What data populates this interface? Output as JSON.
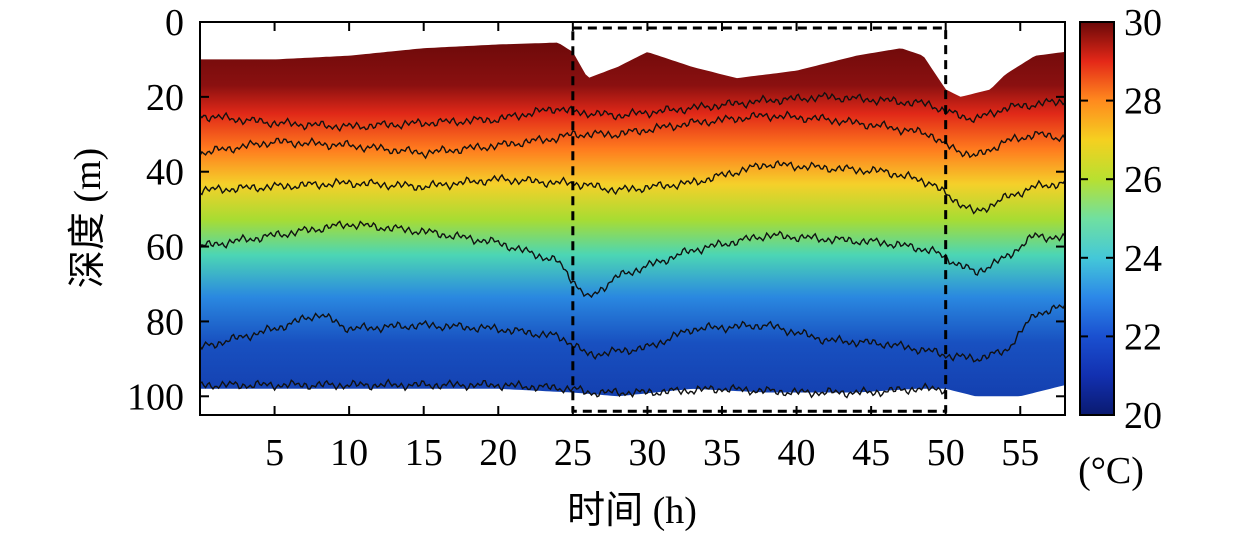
{
  "chart_data": {
    "type": "heatmap",
    "xlabel": "时间 (h)",
    "ylabel": "深度 (m)",
    "xlim": [
      0,
      58
    ],
    "ylim": [
      0,
      105
    ],
    "y_inverted": true,
    "x_ticks": [
      5,
      10,
      15,
      20,
      25,
      30,
      35,
      40,
      45,
      50,
      55
    ],
    "y_ticks": [
      0,
      20,
      40,
      60,
      80,
      100
    ],
    "colorbar": {
      "label": "(°C)",
      "range": [
        20,
        30
      ],
      "ticks": [
        20,
        22,
        24,
        26,
        28,
        30
      ]
    },
    "highlight_box": {
      "x_range": [
        25,
        50
      ],
      "y_range": [
        0,
        104
      ]
    },
    "surface_depth": {
      "t": [
        0,
        5,
        10,
        15,
        20,
        24,
        25,
        26,
        28,
        30,
        33,
        36,
        40,
        44,
        47,
        48.5,
        50,
        51,
        53,
        54,
        56,
        58
      ],
      "depth": [
        10,
        10,
        9,
        7,
        6,
        5.5,
        8,
        15,
        12,
        8,
        12,
        15,
        13,
        9,
        7,
        9,
        18,
        20,
        18,
        14,
        9,
        8
      ]
    },
    "bottom_depth": {
      "t": [
        0,
        10,
        20,
        25,
        28,
        33,
        38,
        44,
        48,
        50,
        52,
        55,
        58
      ],
      "depth": [
        98,
        98,
        98,
        99,
        100,
        98,
        99,
        99,
        98,
        98,
        100,
        100,
        97
      ]
    },
    "isotherms": [
      {
        "t": [
          0,
          5,
          10,
          15,
          20,
          24,
          25,
          28,
          33,
          38,
          42,
          46,
          49,
          50,
          52,
          54,
          56,
          58
        ],
        "depth": [
          25,
          27,
          28,
          27,
          26,
          23,
          24,
          25,
          23,
          21,
          20,
          21,
          22,
          24,
          26,
          23,
          22,
          21
        ]
      },
      {
        "t": [
          0,
          5,
          10,
          15,
          20,
          24,
          25,
          28,
          33,
          38,
          42,
          46,
          49,
          50,
          52,
          54,
          56,
          58
        ],
        "depth": [
          35,
          32,
          33,
          35,
          33,
          31,
          30,
          30,
          27,
          25,
          26,
          28,
          30,
          33,
          36,
          32,
          30,
          31
        ]
      },
      {
        "t": [
          0,
          5,
          10,
          15,
          20,
          24,
          25,
          28,
          33,
          38,
          42,
          46,
          49,
          50,
          52,
          54,
          56,
          58
        ],
        "depth": [
          45,
          44,
          43,
          44,
          42,
          43,
          43,
          45,
          43,
          38,
          39,
          40,
          43,
          46,
          51,
          47,
          44,
          43
        ]
      },
      {
        "t": [
          0,
          5,
          10,
          15,
          20,
          24,
          25,
          26,
          28,
          33,
          38,
          42,
          46,
          49,
          50,
          52,
          54,
          56,
          58
        ],
        "depth": [
          60,
          57,
          54,
          56,
          59,
          64,
          69,
          74,
          68,
          61,
          57,
          58,
          59,
          61,
          63,
          67,
          63,
          57,
          58
        ]
      },
      {
        "t": [
          0,
          5,
          8,
          10,
          15,
          20,
          24,
          25,
          26,
          30,
          33,
          38,
          42,
          46,
          49,
          50,
          52,
          54,
          56,
          58
        ],
        "depth": [
          87,
          82,
          78,
          82,
          81,
          82,
          84,
          86,
          89,
          87,
          82,
          81,
          85,
          86,
          88,
          89,
          90,
          88,
          78,
          76
        ]
      },
      {
        "t": [
          0,
          10,
          20,
          25,
          26,
          30,
          35,
          40,
          45,
          48,
          50
        ],
        "depth": [
          97,
          97,
          97,
          98,
          99,
          99,
          98,
          99,
          99,
          98,
          98
        ]
      }
    ]
  }
}
